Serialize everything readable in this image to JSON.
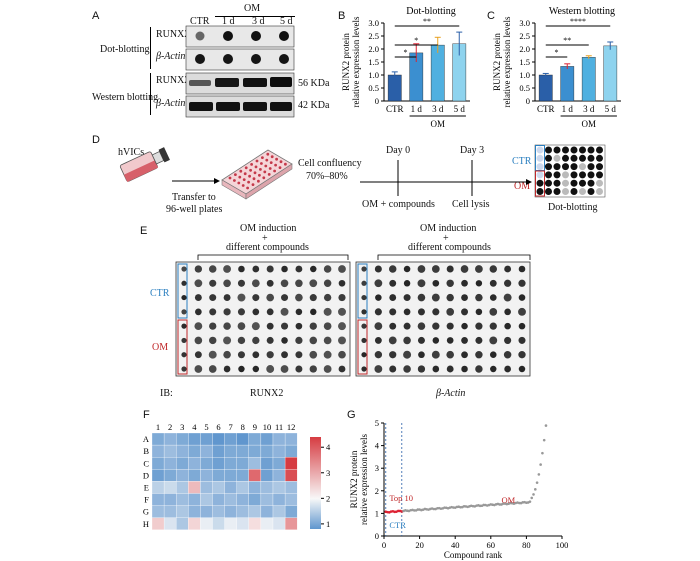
{
  "panelA": {
    "letter": "A",
    "om_header": "OM",
    "lanes": [
      "CTR",
      "1 d",
      "3 d",
      "5 d"
    ],
    "dot_group": "Dot-blotting",
    "western_group": "Western blotting",
    "rows": [
      "RUNX2",
      "β-Actin",
      "RUNX2",
      "β-Actin"
    ],
    "kda": [
      "56 KDa",
      "42 KDa"
    ]
  },
  "panelB": {
    "letter": "B",
    "chart_data": {
      "type": "bar",
      "title": "Dot-blotting",
      "categories": [
        "CTR",
        "1 d",
        "3 d",
        "5 d"
      ],
      "values": [
        1.0,
        1.85,
        2.15,
        2.2
      ],
      "errors": [
        0.12,
        0.35,
        0.3,
        0.45
      ],
      "ylabel": "RUNX2 protein relative expression levels",
      "ylim": [
        0,
        3
      ],
      "yticks": [
        "0",
        "0.5",
        "1.0",
        "1.5",
        "2.0",
        "2.5",
        "3.0"
      ],
      "group_label": "OM",
      "significance": [
        "*",
        "*",
        "**"
      ],
      "colors": [
        "#2a5fa8",
        "#3b8fd0",
        "#4fb0e0",
        "#8ed3ee"
      ]
    }
  },
  "panelC": {
    "letter": "C",
    "chart_data": {
      "type": "bar",
      "title": "Western blotting",
      "categories": [
        "CTR",
        "1 d",
        "3 d",
        "5 d"
      ],
      "values": [
        1.0,
        1.33,
        1.68,
        2.12
      ],
      "errors": [
        0.06,
        0.1,
        0.06,
        0.15
      ],
      "ylabel": "RUNX2 protein relative expression levels",
      "ylim": [
        0,
        3
      ],
      "yticks": [
        "0",
        "0.5",
        "1.0",
        "1.5",
        "2.0",
        "2.5",
        "3.0"
      ],
      "group_label": "OM",
      "significance": [
        "*",
        "**",
        "****"
      ],
      "colors": [
        "#2a5fa8",
        "#3b8fd0",
        "#4fb0e0",
        "#8ed3ee"
      ]
    }
  },
  "panelD": {
    "letter": "D",
    "cells": "hVICs",
    "transfer": "Transfer to",
    "plates": "96-well plates",
    "confluency1": "Cell confluency",
    "confluency2": "70%–80%",
    "day0": "Day 0",
    "day3": "Day 3",
    "om_compounds": "OM + compounds",
    "lysis": "Cell lysis",
    "ctr": "CTR",
    "om": "OM",
    "dotblot": "Dot-blotting"
  },
  "panelE": {
    "letter": "E",
    "induction1": "OM induction",
    "plus": "+",
    "different": "different compounds",
    "ctr": "CTR",
    "om": "OM",
    "ib": "IB:",
    "left_label": "RUNX2",
    "right_label": "β-Actin"
  },
  "panelF": {
    "letter": "F",
    "chart_data": {
      "type": "heatmap",
      "columns": [
        "1",
        "2",
        "3",
        "4",
        "5",
        "6",
        "7",
        "8",
        "9",
        "10",
        "11",
        "12"
      ],
      "rows": [
        "A",
        "B",
        "C",
        "D",
        "E",
        "F",
        "G",
        "H"
      ],
      "colorbar_ticks": [
        "1",
        "2",
        "3",
        "4"
      ],
      "values": [
        [
          1.2,
          1.3,
          1.2,
          1.1,
          1.1,
          1.0,
          1.1,
          1.0,
          1.2,
          1.1,
          1.3,
          1.3
        ],
        [
          1.3,
          1.4,
          1.3,
          1.2,
          1.3,
          1.1,
          1.2,
          1.2,
          1.2,
          1.2,
          1.3,
          1.2
        ],
        [
          1.2,
          1.3,
          1.2,
          1.3,
          1.2,
          1.1,
          1.2,
          1.2,
          1.4,
          1.1,
          1.2,
          4.0
        ],
        [
          1.1,
          1.2,
          1.3,
          1.2,
          1.3,
          1.2,
          1.2,
          1.2,
          3.5,
          1.1,
          1.3,
          3.8
        ],
        [
          1.6,
          1.7,
          1.5,
          2.6,
          1.4,
          1.5,
          1.3,
          1.5,
          1.3,
          1.4,
          1.5,
          1.4
        ],
        [
          1.3,
          1.3,
          1.4,
          1.3,
          1.5,
          1.3,
          1.4,
          1.3,
          1.2,
          1.4,
          1.3,
          1.4
        ],
        [
          1.4,
          1.4,
          1.5,
          1.3,
          1.3,
          1.4,
          1.3,
          1.4,
          1.5,
          1.3,
          1.5,
          1.2
        ],
        [
          2.4,
          1.8,
          1.5,
          2.3,
          1.9,
          1.7,
          1.9,
          1.8,
          2.2,
          1.9,
          1.8,
          3.0
        ]
      ]
    }
  },
  "panelG": {
    "letter": "G",
    "chart_data": {
      "type": "scatter",
      "xlabel": "Compound rank",
      "ylabel": "RUNX2 protein relative expression levels",
      "xlim": [
        0,
        100
      ],
      "ylim": [
        0,
        5
      ],
      "xticks": [
        "0",
        "20",
        "40",
        "60",
        "80",
        "100"
      ],
      "yticks": [
        "0",
        "1",
        "2",
        "3",
        "4",
        "5"
      ],
      "annotations": [
        "Top 10",
        "CTR",
        "OM"
      ],
      "top_n": 10,
      "n_points": 91
    }
  }
}
